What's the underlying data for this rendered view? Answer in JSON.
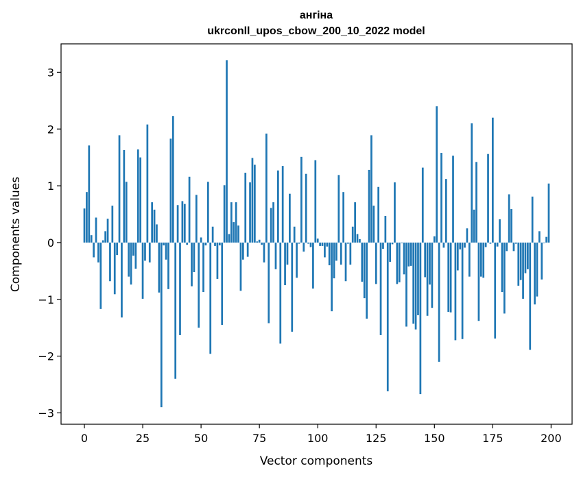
{
  "chart_data": {
    "type": "bar",
    "title": "ангіна",
    "subtitle": "ukrconll_upos_cbow_200_10_2022 model",
    "xlabel": "Vector components",
    "ylabel": "Components values",
    "xlim": [
      -10,
      209
    ],
    "ylim": [
      -3.2,
      3.5
    ],
    "xticks": [
      0,
      25,
      50,
      75,
      100,
      125,
      150,
      175,
      200
    ],
    "yticks": [
      -3,
      -2,
      -1,
      0,
      1,
      2,
      3
    ],
    "ytick_labels": [
      "−3",
      "−2",
      "−1",
      "0",
      "1",
      "2",
      "3"
    ],
    "grid": false,
    "legend": "none",
    "bar_color": "#1f77b4",
    "x": [
      0,
      1,
      2,
      3,
      4,
      5,
      6,
      7,
      8,
      9,
      10,
      11,
      12,
      13,
      14,
      15,
      16,
      17,
      18,
      19,
      20,
      21,
      22,
      23,
      24,
      25,
      26,
      27,
      28,
      29,
      30,
      31,
      32,
      33,
      34,
      35,
      36,
      37,
      38,
      39,
      40,
      41,
      42,
      43,
      44,
      45,
      46,
      47,
      48,
      49,
      50,
      51,
      52,
      53,
      54,
      55,
      56,
      57,
      58,
      59,
      60,
      61,
      62,
      63,
      64,
      65,
      66,
      67,
      68,
      69,
      70,
      71,
      72,
      73,
      74,
      75,
      76,
      77,
      78,
      79,
      80,
      81,
      82,
      83,
      84,
      85,
      86,
      87,
      88,
      89,
      90,
      91,
      92,
      93,
      94,
      95,
      96,
      97,
      98,
      99,
      100,
      101,
      102,
      103,
      104,
      105,
      106,
      107,
      108,
      109,
      110,
      111,
      112,
      113,
      114,
      115,
      116,
      117,
      118,
      119,
      120,
      121,
      122,
      123,
      124,
      125,
      126,
      127,
      128,
      129,
      130,
      131,
      132,
      133,
      134,
      135,
      136,
      137,
      138,
      139,
      140,
      141,
      142,
      143,
      144,
      145,
      146,
      147,
      148,
      149,
      150,
      151,
      152,
      153,
      154,
      155,
      156,
      157,
      158,
      159,
      160,
      161,
      162,
      163,
      164,
      165,
      166,
      167,
      168,
      169,
      170,
      171,
      172,
      173,
      174,
      175,
      176,
      177,
      178,
      179,
      180,
      181,
      182,
      183,
      184,
      185,
      186,
      187,
      188,
      189,
      190,
      191,
      192,
      193,
      194,
      195,
      196,
      197,
      198,
      199
    ],
    "values": [
      0.6,
      0.89,
      1.71,
      0.13,
      -0.26,
      0.44,
      -0.35,
      -1.17,
      0.04,
      0.2,
      0.42,
      -0.68,
      0.65,
      -0.91,
      -0.22,
      1.89,
      -1.32,
      1.63,
      1.07,
      -0.6,
      -0.74,
      -0.23,
      -0.46,
      1.64,
      1.5,
      -0.99,
      -0.32,
      2.08,
      -0.35,
      0.71,
      0.58,
      0.32,
      -0.88,
      -2.9,
      -0.05,
      -0.3,
      -0.82,
      1.83,
      2.23,
      -2.4,
      0.66,
      -1.63,
      0.73,
      0.68,
      -0.04,
      1.16,
      -0.77,
      -0.52,
      0.84,
      -1.5,
      0.09,
      -0.87,
      -0.05,
      1.07,
      -1.96,
      0.28,
      -0.06,
      -0.64,
      -0.05,
      -1.45,
      1.01,
      3.21,
      0.15,
      0.71,
      0.36,
      0.71,
      0.3,
      -0.85,
      -0.3,
      1.23,
      -0.25,
      1.06,
      1.49,
      1.37,
      0.02,
      0.05,
      -0.04,
      -0.35,
      1.92,
      -1.42,
      0.61,
      0.71,
      -0.47,
      1.27,
      -1.78,
      1.35,
      -0.75,
      -0.39,
      0.86,
      -1.57,
      0.28,
      -0.62,
      -0.02,
      1.51,
      -0.16,
      1.21,
      -0.02,
      -0.08,
      -0.81,
      1.45,
      0.07,
      -0.06,
      -0.06,
      -0.26,
      -0.07,
      -0.4,
      -1.21,
      -0.63,
      -0.32,
      1.19,
      -0.39,
      0.89,
      -0.68,
      -0.02,
      -0.39,
      0.28,
      0.71,
      0.15,
      0.06,
      -0.69,
      -0.98,
      -1.34,
      1.28,
      1.89,
      0.65,
      -0.73,
      0.98,
      -1.63,
      -0.11,
      0.47,
      -2.62,
      -0.34,
      -0.03,
      1.06,
      -0.73,
      -0.7,
      -0.01,
      -0.56,
      -1.48,
      -0.42,
      -0.41,
      -1.43,
      -1.53,
      -1.28,
      -2.67,
      1.32,
      -0.61,
      -1.29,
      -0.74,
      -1.15,
      0.11,
      2.4,
      -2.1,
      1.58,
      -0.09,
      1.12,
      -1.22,
      -1.23,
      1.53,
      -1.72,
      -0.49,
      -0.12,
      -1.7,
      -0.09,
      0.25,
      -0.6,
      2.1,
      0.58,
      1.42,
      -1.38,
      -0.6,
      -0.62,
      -0.08,
      1.56,
      -0.02,
      2.2,
      -1.69,
      -0.07,
      0.41,
      -0.87,
      -1.25,
      -0.15,
      0.85,
      0.59,
      -0.15,
      -0.02,
      -0.76,
      -0.66,
      -0.99,
      -0.54,
      -0.47,
      -1.89,
      0.81,
      -1.09,
      -0.95,
      0.2,
      -0.65,
      -0.01,
      0.1,
      1.04
    ]
  }
}
